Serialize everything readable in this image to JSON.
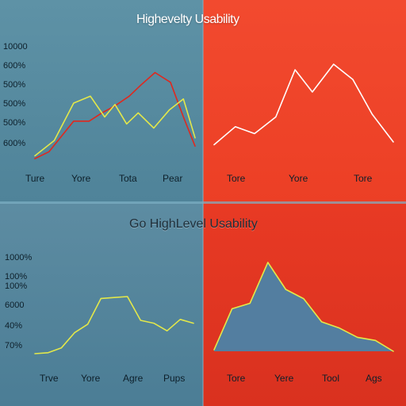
{
  "titles": {
    "top": "Highevelty Usability",
    "bottom": "Go HighLevel Usability"
  },
  "colors": {
    "panel_blue": "#5a8da2",
    "panel_red": "#ec4128",
    "red_series": "#e0281e",
    "yellow_series": "#e3e84a",
    "white_series": "#ffffff",
    "area_fill": "#537ea0"
  },
  "chart_data": [
    {
      "type": "line",
      "panel": "top-left",
      "yticks": [
        "10000",
        "600%",
        "500%",
        "500%",
        "500%",
        "600%"
      ],
      "categories": [
        "Ture",
        "Yore",
        "Tota",
        "Pear"
      ],
      "x": [
        0,
        1,
        2,
        3,
        4,
        5,
        6,
        7,
        8,
        9,
        10,
        11,
        12,
        13
      ],
      "series": [
        {
          "color": "#e0281e",
          "values": [
            0,
            0.5,
            2.7,
            2.7,
            3.3,
            3.8,
            4.5,
            5.3,
            6.2,
            5.5,
            3,
            0.9
          ],
          "x": [
            0,
            1.1,
            3.0,
            4.2,
            5.2,
            6.2,
            7.3,
            8.2,
            9.3,
            10.5,
            11.5,
            12.4
          ]
        },
        {
          "color": "#e3e84a",
          "values": [
            0.2,
            1.3,
            4.0,
            4.5,
            3.0,
            3.9,
            2.5,
            3.3,
            2.2,
            3.5,
            4.3,
            1.5
          ],
          "x": [
            0,
            1.5,
            3.0,
            4.3,
            5.4,
            6.2,
            7.1,
            8.0,
            9.2,
            10.4,
            11.5,
            12.4
          ]
        }
      ],
      "xlim": [
        0,
        12.4
      ],
      "ylim": [
        0,
        8
      ]
    },
    {
      "type": "line",
      "panel": "top-right",
      "categories": [
        "Tore",
        "Yore",
        "Tore"
      ],
      "series": [
        {
          "color": "#ffffff",
          "x": [
            0,
            1.1,
            2.1,
            3.2,
            4.2,
            5.1,
            6.2,
            7.2,
            8.2,
            9.3
          ],
          "values": [
            1.0,
            2.3,
            1.8,
            3.0,
            6.4,
            4.8,
            6.8,
            5.7,
            3.2,
            1.2
          ]
        }
      ],
      "xlim": [
        0,
        9.3
      ],
      "ylim": [
        0,
        8
      ]
    },
    {
      "type": "line",
      "panel": "bottom-left",
      "yticks": [
        "1000%",
        "100%",
        "100%",
        "6000",
        "40%",
        "70%"
      ],
      "categories": [
        "Trve",
        "Yore",
        "Agre",
        "Pups"
      ],
      "series": [
        {
          "color": "#e3e84a",
          "x": [
            0,
            1,
            2,
            3,
            4,
            5,
            6,
            7,
            8,
            9,
            10,
            11,
            12
          ],
          "values": [
            0,
            0.1,
            0.6,
            2.2,
            3.1,
            5.8,
            5.9,
            6.0,
            3.5,
            3.2,
            2.4,
            3.6,
            3.2
          ]
        }
      ],
      "xlim": [
        0,
        12
      ],
      "ylim": [
        0,
        10
      ]
    },
    {
      "type": "area",
      "panel": "bottom-right",
      "categories": [
        "Tore",
        "Yere",
        "Tool",
        "Ags"
      ],
      "series": [
        {
          "color": "#e3e84a",
          "x": [
            0,
            1,
            2,
            3,
            4,
            5,
            6,
            7,
            8,
            9,
            10
          ],
          "values": [
            0.2,
            5.5,
            6.2,
            11.5,
            8.0,
            6.8,
            3.8,
            3.0,
            1.8,
            1.4,
            0
          ]
        }
      ],
      "xlim": [
        0,
        10
      ],
      "ylim": [
        0,
        12
      ]
    }
  ]
}
